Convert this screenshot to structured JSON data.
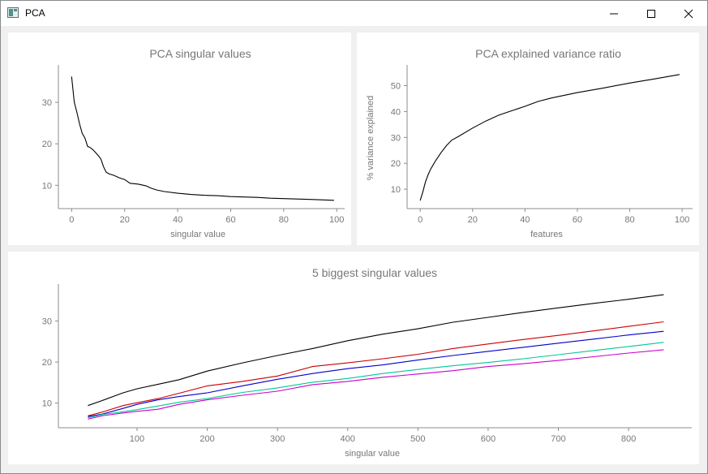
{
  "window": {
    "title": "PCA",
    "icon": "app-window-icon"
  },
  "chart_data": [
    {
      "type": "line",
      "title": "PCA singular values",
      "xlabel": "singular value",
      "ylabel": "",
      "xlim": [
        -5,
        103
      ],
      "ylim": [
        4.4,
        39
      ],
      "xticks": [
        0,
        20,
        40,
        60,
        80,
        100
      ],
      "yticks": [
        10,
        20,
        30
      ],
      "grid": false,
      "series": [
        {
          "color": "#000000",
          "x": [
            0,
            1,
            2,
            3,
            4,
            5,
            6,
            7,
            8,
            9,
            10,
            11,
            12,
            13,
            14,
            16,
            18,
            20,
            22,
            25,
            28,
            30,
            32,
            35,
            40,
            45,
            50,
            55,
            60,
            65,
            70,
            75,
            80,
            85,
            90,
            95,
            99
          ],
          "y": [
            36.2,
            30,
            27.5,
            24.8,
            22.5,
            21.4,
            19.4,
            19.1,
            18.6,
            17.9,
            17.2,
            16.4,
            14.5,
            13.2,
            12.8,
            12.4,
            11.8,
            11.4,
            10.5,
            10.3,
            9.9,
            9.3,
            8.9,
            8.5,
            8.1,
            7.8,
            7.6,
            7.5,
            7.3,
            7.2,
            7.1,
            6.9,
            6.8,
            6.7,
            6.6,
            6.5,
            6.4
          ]
        }
      ]
    },
    {
      "type": "line",
      "title": "PCA explained variance ratio",
      "xlabel": "features",
      "ylabel": "% variance explained",
      "xlim": [
        -5,
        104
      ],
      "ylim": [
        2.5,
        58
      ],
      "xticks": [
        0,
        20,
        40,
        60,
        80,
        100
      ],
      "yticks": [
        10,
        20,
        30,
        40,
        50
      ],
      "grid": false,
      "series": [
        {
          "color": "#000000",
          "x": [
            0,
            1,
            2,
            3,
            4,
            5,
            6,
            8,
            10,
            12,
            15,
            20,
            25,
            30,
            35,
            40,
            45,
            50,
            60,
            70,
            80,
            90,
            99
          ],
          "y": [
            5.6,
            9,
            12.8,
            15.5,
            17.8,
            19.5,
            21.2,
            24.2,
            26.8,
            28.9,
            30.6,
            33.6,
            36.3,
            38.6,
            40.3,
            42,
            43.9,
            45.2,
            47.3,
            49.1,
            51,
            52.7,
            54.3
          ]
        }
      ]
    },
    {
      "type": "line",
      "title": "5 biggest singular values",
      "xlabel": "singular value",
      "ylabel": "",
      "xlim": [
        -12,
        890
      ],
      "ylim": [
        4,
        39
      ],
      "xticks": [
        100,
        200,
        300,
        400,
        500,
        600,
        700,
        800
      ],
      "yticks": [
        10,
        20,
        30
      ],
      "grid": false,
      "x": [
        30,
        50,
        80,
        100,
        130,
        160,
        200,
        250,
        300,
        350,
        400,
        450,
        500,
        550,
        600,
        650,
        700,
        750,
        800,
        850
      ],
      "series": [
        {
          "color": "#000000",
          "values": [
            9.4,
            10.6,
            12.5,
            13.5,
            14.6,
            15.7,
            17.8,
            19.8,
            21.6,
            23.3,
            25.2,
            26.8,
            28.1,
            29.7,
            30.9,
            32.1,
            33.2,
            34.3,
            35.3,
            36.4
          ]
        },
        {
          "color": "#cc0000",
          "values": [
            6.9,
            7.8,
            9.4,
            10.1,
            11.1,
            12.4,
            14.2,
            15.3,
            16.6,
            18.9,
            19.8,
            20.8,
            21.9,
            23.3,
            24.4,
            25.5,
            26.5,
            27.6,
            28.7,
            29.8
          ]
        },
        {
          "color": "#0000cc",
          "values": [
            6.7,
            7.3,
            8.7,
            9.7,
            10.8,
            11.6,
            12.5,
            14.2,
            15.8,
            17.2,
            18.4,
            19.3,
            20.5,
            21.6,
            22.6,
            23.6,
            24.6,
            25.6,
            26.6,
            27.5
          ]
        },
        {
          "color": "#00c896",
          "values": [
            6.4,
            7.2,
            7.9,
            8.4,
            9.3,
            10.2,
            11.1,
            12.6,
            13.7,
            15.1,
            16.0,
            17.2,
            18.2,
            19.1,
            19.9,
            20.8,
            21.8,
            22.8,
            23.8,
            24.8
          ]
        },
        {
          "color": "#cc00cc",
          "values": [
            6.1,
            6.9,
            7.6,
            8.0,
            8.5,
            9.7,
            10.8,
            11.9,
            12.9,
            14.5,
            15.3,
            16.3,
            17.1,
            17.9,
            18.9,
            19.6,
            20.4,
            21.3,
            22.2,
            23.0
          ]
        }
      ]
    }
  ]
}
